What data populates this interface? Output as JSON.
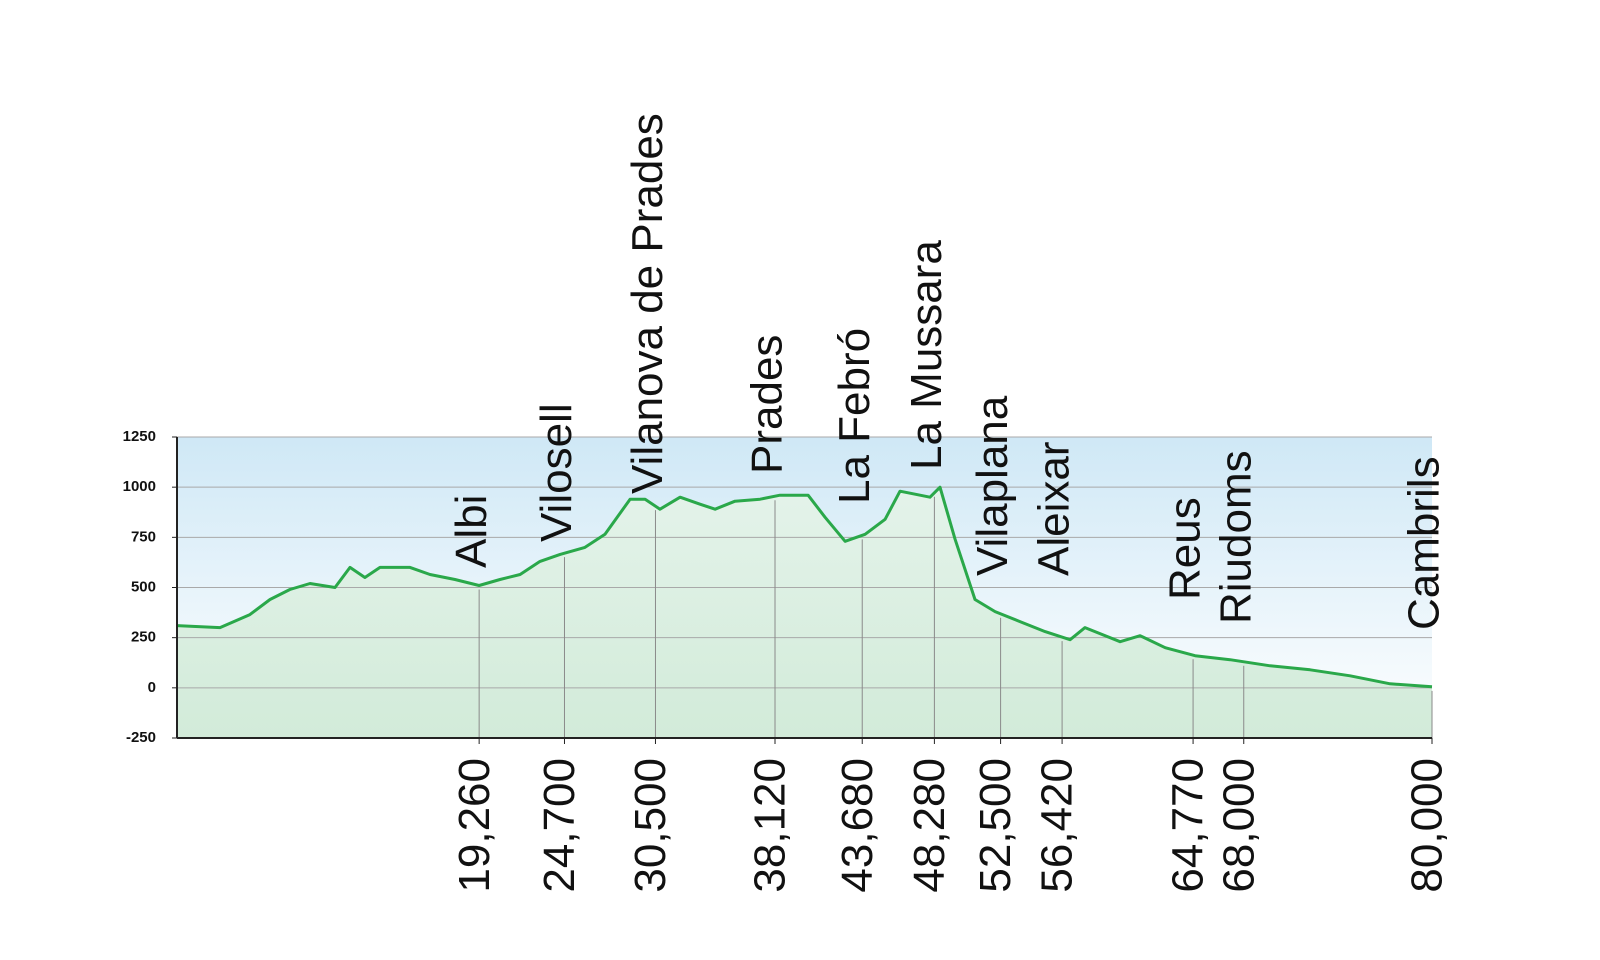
{
  "chart_data": {
    "type": "area",
    "x": [
      0,
      2740,
      4650,
      5930,
      7200,
      8480,
      10070,
      11030,
      11980,
      12940,
      14850,
      16130,
      17720,
      19260,
      20590,
      21870,
      23140,
      24420,
      26000,
      27280,
      28880,
      29840,
      30790,
      32070,
      33340,
      34300,
      35570,
      37170,
      38440,
      40230,
      41310,
      42590,
      43860,
      45140,
      46090,
      47050,
      48000,
      48640,
      49600,
      50870,
      52150,
      53740,
      55340,
      56930,
      57880,
      60120,
      61390,
      62990,
      64900,
      67130,
      69680,
      72230,
      74780,
      77330,
      80000
    ],
    "series": [
      {
        "color": "#2aa84a",
        "values": [
          310,
          300,
          365,
          440,
          490,
          520,
          500,
          600,
          550,
          600,
          600,
          565,
          540,
          510,
          540,
          565,
          630,
          665,
          700,
          765,
          940,
          940,
          890,
          950,
          915,
          890,
          930,
          940,
          960,
          960,
          850,
          730,
          765,
          840,
          980,
          965,
          950,
          1000,
          740,
          440,
          380,
          330,
          280,
          240,
          300,
          230,
          260,
          200,
          160,
          140,
          110,
          90,
          60,
          20,
          5
        ]
      }
    ],
    "xlim": [
      0,
      80000
    ],
    "xticks": [
      {
        "value": 19260,
        "label": "19,260"
      },
      {
        "value": 24700,
        "label": "24,700"
      },
      {
        "value": 30500,
        "label": "30,500"
      },
      {
        "value": 38120,
        "label": "38,120"
      },
      {
        "value": 43680,
        "label": "43,680"
      },
      {
        "value": 48280,
        "label": "48,280"
      },
      {
        "value": 52500,
        "label": "52,500"
      },
      {
        "value": 56420,
        "label": "56,420"
      },
      {
        "value": 64770,
        "label": "64,770"
      },
      {
        "value": 68000,
        "label": "68,000"
      },
      {
        "value": 80000,
        "label": "80,000"
      }
    ],
    "places": [
      "Albi",
      "Vilosell",
      "Vilanova de Prades",
      "Prades",
      "La Febró",
      "La Mussara",
      "Vilaplana",
      "Aleixar",
      "Reus",
      "Riudoms",
      "Cambrils"
    ],
    "ylim": [
      -250,
      1250
    ],
    "yticks": [
      -250,
      0,
      250,
      500,
      750,
      1000,
      1250
    ],
    "grid": true
  }
}
